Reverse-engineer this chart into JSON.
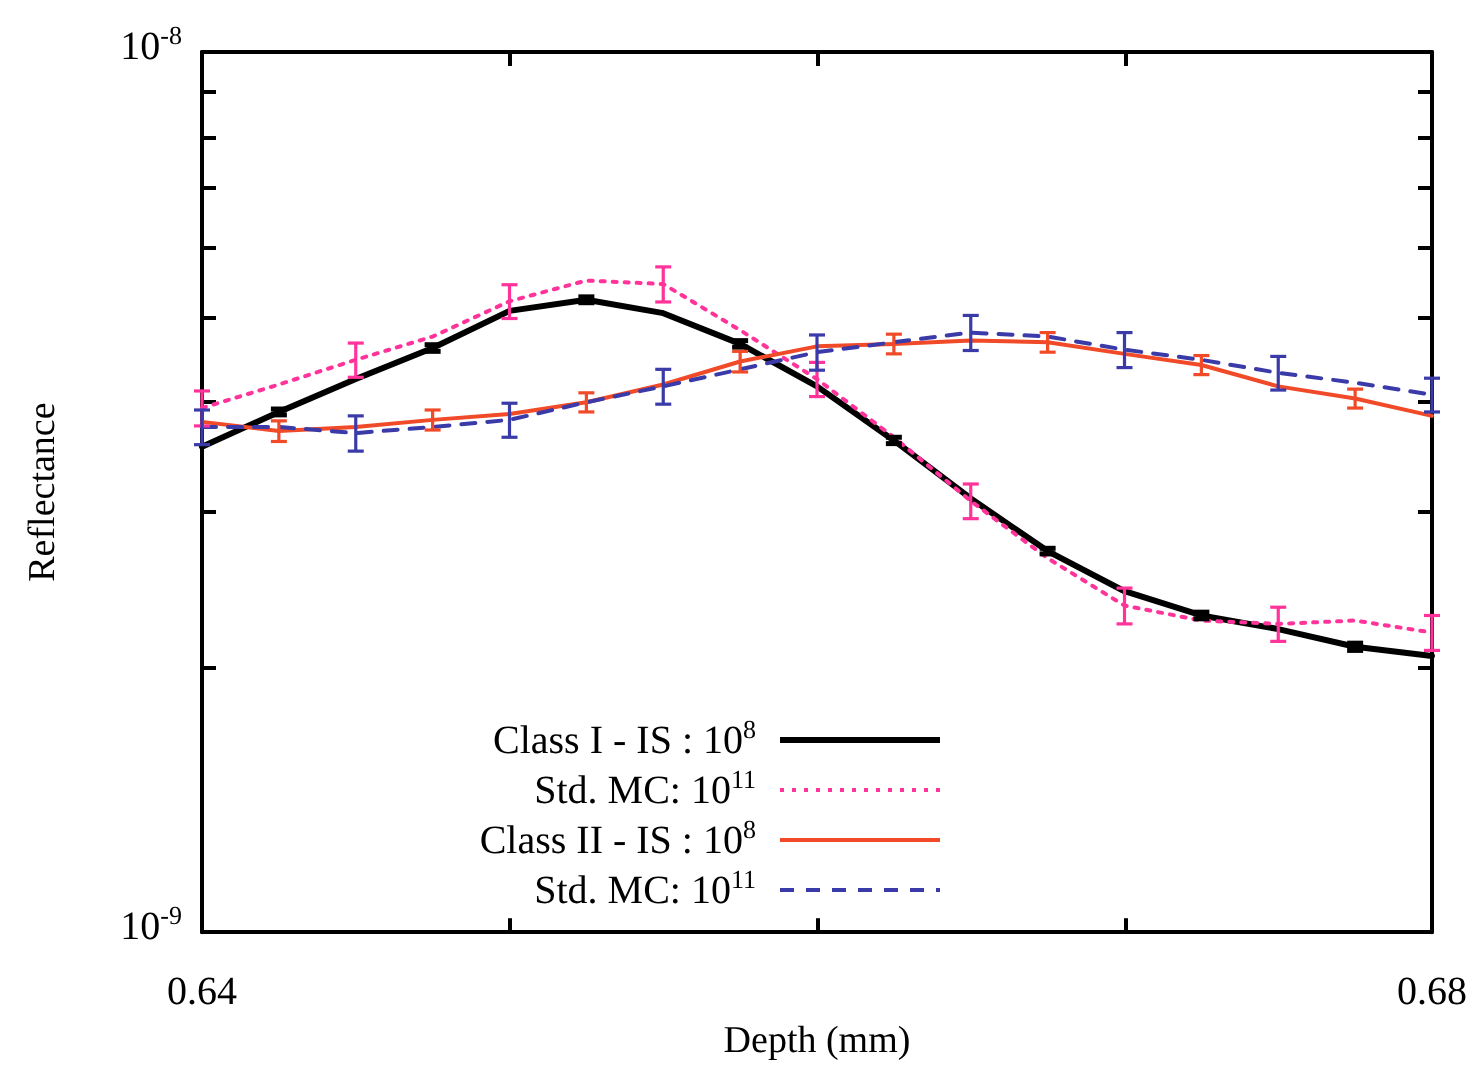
{
  "chart_data": {
    "type": "line",
    "xlabel": "Depth (mm)",
    "ylabel": "Reflectance",
    "x": [
      0.64,
      0.6425,
      0.645,
      0.6475,
      0.65,
      0.6525,
      0.655,
      0.6575,
      0.66,
      0.6625,
      0.665,
      0.6675,
      0.67,
      0.6725,
      0.675,
      0.6775,
      0.68
    ],
    "series": [
      {
        "name": "Class I  - IS : 10$^{8}$",
        "color": "#000000",
        "line_style": "solid",
        "values": [
          3.56e-09,
          3.9e-09,
          4.25e-09,
          4.61e-09,
          5.08e-09,
          5.23e-09,
          5.05e-09,
          4.66e-09,
          4.17e-09,
          3.62e-09,
          3.11e-09,
          2.71e-09,
          2.44e-09,
          2.29e-09,
          2.21e-09,
          2.11e-09,
          2.06e-09
        ],
        "errors": [
          null,
          3e-11,
          null,
          4e-11,
          null,
          4e-11,
          null,
          4e-11,
          null,
          3e-11,
          null,
          2e-11,
          null,
          2e-11,
          null,
          2e-11,
          null
        ]
      },
      {
        "name": "Std. MC: 10$^{11}$",
        "color": "#ff3399",
        "line_style": "dotted",
        "values": [
          3.94e-09,
          4.19e-09,
          4.47e-09,
          4.75e-09,
          5.21e-09,
          5.5e-09,
          5.45e-09,
          4.83e-09,
          4.25e-09,
          3.65e-09,
          3.09e-09,
          2.66e-09,
          2.35e-09,
          2.26e-09,
          2.24e-09,
          2.26e-09,
          2.19e-09
        ],
        "errors": [
          1.8e-10,
          null,
          2e-10,
          null,
          2.3e-10,
          null,
          2.5e-10,
          null,
          1.9e-10,
          null,
          1.4e-10,
          null,
          1.1e-10,
          null,
          1e-10,
          null,
          1e-10
        ]
      },
      {
        "name": "Class II - IS : 10$^{8}$",
        "color": "#f04a28",
        "line_style": "solid",
        "values": [
          3.8e-09,
          3.71e-09,
          3.75e-09,
          3.82e-09,
          3.88e-09,
          4e-09,
          4.19e-09,
          4.45e-09,
          4.63e-09,
          4.66e-09,
          4.7e-09,
          4.68e-09,
          4.54e-09,
          4.41e-09,
          4.17e-09,
          4.04e-09,
          3.86e-09
        ],
        "errors": [
          null,
          1e-10,
          null,
          1e-10,
          null,
          1e-10,
          null,
          1.2e-10,
          null,
          1.2e-10,
          null,
          1.2e-10,
          null,
          1.1e-10,
          null,
          1e-10,
          null
        ]
      },
      {
        "name": "Std. MC: 10$^{11}$",
        "color": "#3a3aa8",
        "line_style": "dashed",
        "values": [
          3.75e-09,
          3.75e-09,
          3.69e-09,
          3.75e-09,
          3.82e-09,
          4e-09,
          4.17e-09,
          4.36e-09,
          4.56e-09,
          4.68e-09,
          4.8e-09,
          4.75e-09,
          4.59e-09,
          4.47e-09,
          4.32e-09,
          4.21e-09,
          4.08e-09
        ],
        "errors": [
          1.7e-10,
          null,
          1.7e-10,
          null,
          1.7e-10,
          null,
          1.9e-10,
          null,
          2.1e-10,
          null,
          2.2e-10,
          null,
          2.1e-10,
          null,
          1.9e-10,
          null,
          1.8e-10
        ]
      }
    ],
    "xlim": [
      0.64,
      0.68
    ],
    "xticks": [
      0.64,
      {
        "value": 0.65,
        "label": null
      },
      {
        "value": 0.66,
        "label": null
      },
      {
        "value": 0.67,
        "label": null
      },
      0.68
    ],
    "log": true,
    "ylim": [
      1e-09,
      1e-08
    ],
    "yticks": [
      {
        "value": 1e-09,
        "label": "10$^{-9}$"
      },
      {
        "value": 2e-09,
        "label": null
      },
      {
        "value": 3e-09,
        "label": null
      },
      {
        "value": 4e-09,
        "label": null
      },
      {
        "value": 5e-09,
        "label": null
      },
      {
        "value": 6e-09,
        "label": null
      },
      {
        "value": 7e-09,
        "label": null
      },
      {
        "value": 8e-09,
        "label": null
      },
      {
        "value": 9e-09,
        "label": null
      },
      {
        "value": 1e-08,
        "label": "10$^{-8}$"
      }
    ],
    "grid": false,
    "legend": "bottom left",
    "marker": "none"
  }
}
